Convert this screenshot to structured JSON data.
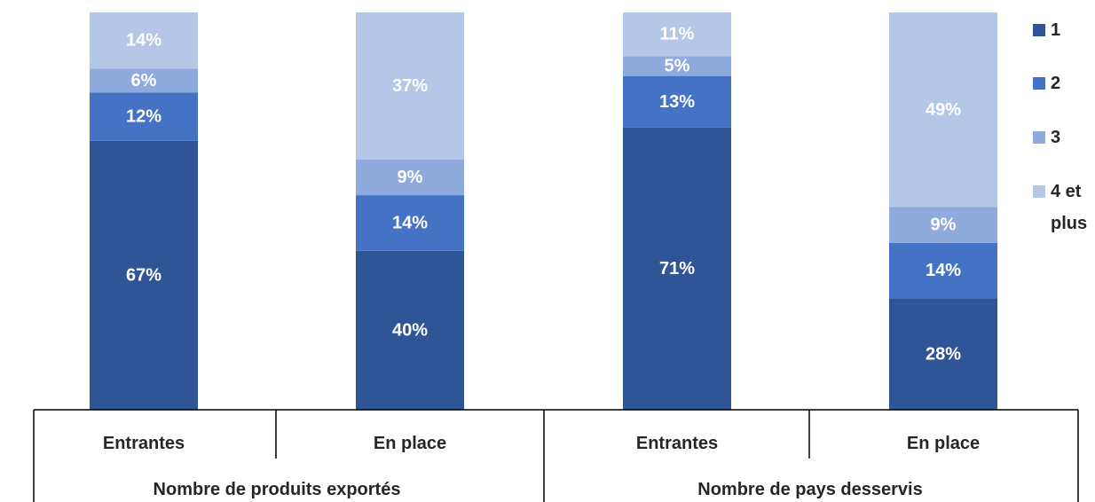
{
  "chart_data": {
    "type": "bar",
    "stacked": true,
    "normalized": true,
    "categories": [
      "Entrantes",
      "En place",
      "Entrantes",
      "En place"
    ],
    "groups": [
      {
        "label": "Nombre de produits exportés",
        "categories": [
          "Entrantes",
          "En place"
        ]
      },
      {
        "label": "Nombre de pays desservis",
        "categories": [
          "Entrantes",
          "En place"
        ]
      }
    ],
    "series": [
      {
        "name": "1",
        "color": "#2f5597",
        "values": [
          67,
          40,
          71,
          28
        ],
        "labels": [
          "67%",
          "40%",
          "71%",
          "28%"
        ]
      },
      {
        "name": "2",
        "color": "#4472c4",
        "values": [
          12,
          14,
          13,
          14
        ],
        "labels": [
          "12%",
          "14%",
          "13%",
          "14%"
        ]
      },
      {
        "name": "3",
        "color": "#8faadc",
        "values": [
          6,
          9,
          5,
          9
        ],
        "labels": [
          "6%",
          "9%",
          "5%",
          "9%"
        ]
      },
      {
        "name": "4 et plus",
        "color": "#b4c7e7",
        "values": [
          14,
          37,
          11,
          49
        ],
        "labels": [
          "14%",
          "37%",
          "11%",
          "49%"
        ]
      }
    ],
    "legend": {
      "position": "right",
      "entries": [
        [
          "1"
        ],
        [
          "2"
        ],
        [
          "3"
        ],
        [
          "4 et",
          "plus"
        ]
      ]
    },
    "title": "",
    "xlabel": "",
    "ylabel": "",
    "grid": false
  }
}
